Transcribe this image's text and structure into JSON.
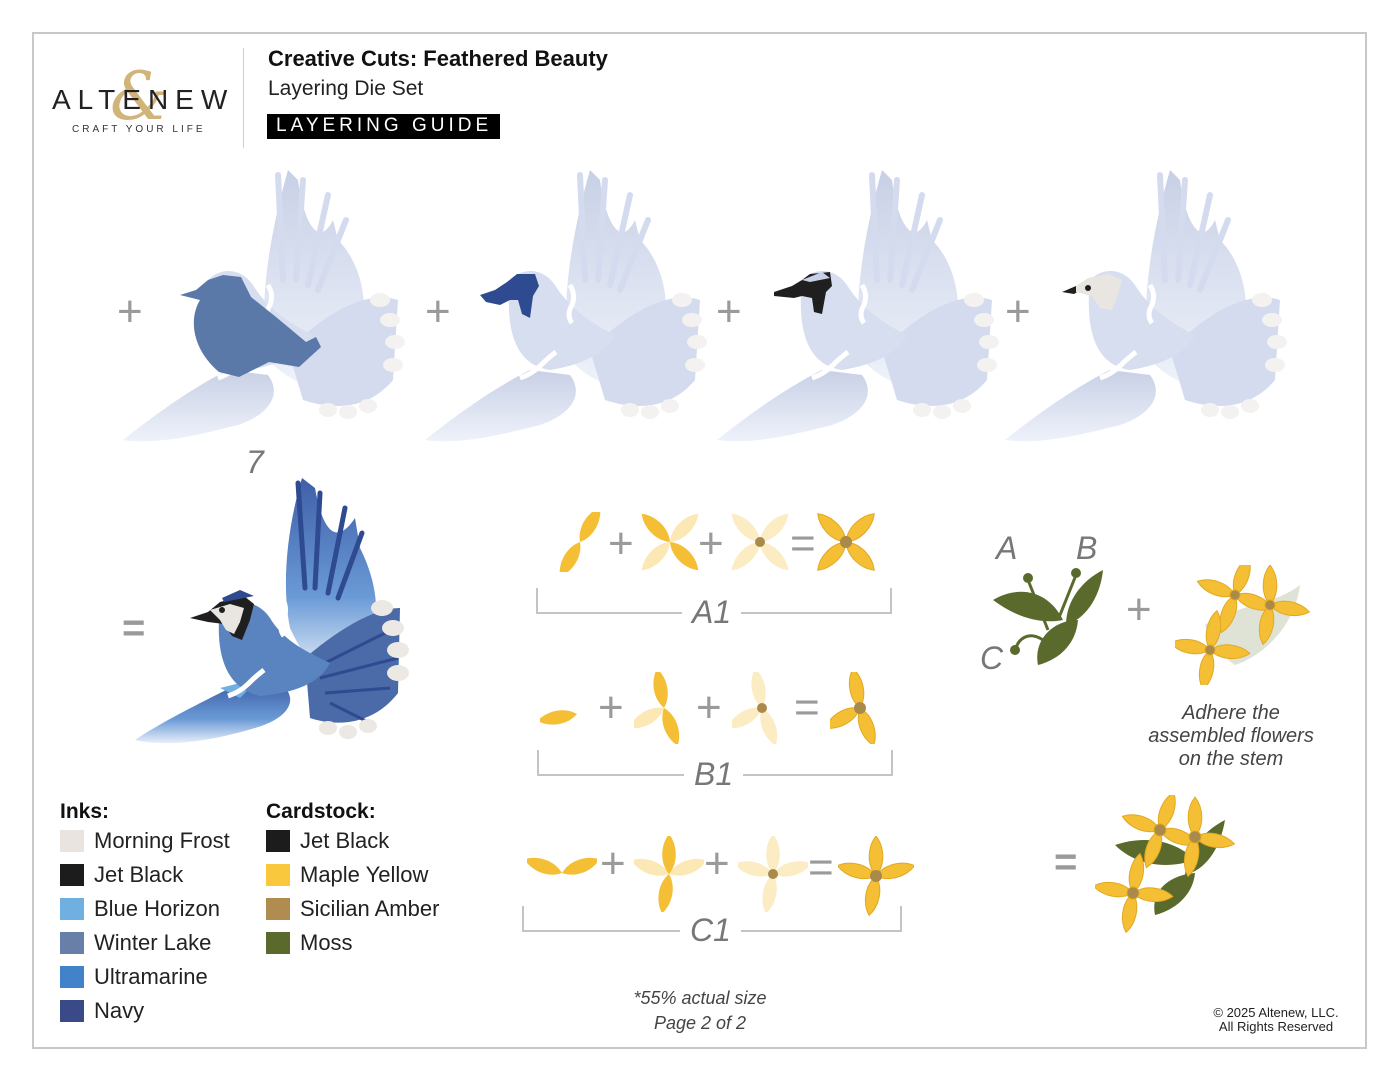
{
  "brand": {
    "name": "ALTENEW",
    "ampersand": "&",
    "tagline": "CRAFT YOUR LIFE"
  },
  "header": {
    "title": "Creative Cuts: Feathered Beauty",
    "subtitle": "Layering Die Set",
    "badge": "LAYERING GUIDE"
  },
  "bird_steps": {
    "operators": [
      "+",
      "+",
      "+",
      "+"
    ],
    "step_number": "7",
    "result_operator": "=",
    "layers": [
      {
        "highlight": "body",
        "color": "#5a78a8"
      },
      {
        "highlight": "crest",
        "color": "#2e4a90"
      },
      {
        "highlight": "face-mask",
        "color": "#1f1f1f"
      },
      {
        "highlight": "face-white",
        "color": "#e9e6e2"
      }
    ]
  },
  "flower_steps": [
    {
      "label": "A1",
      "operators": [
        "+",
        "+",
        "="
      ]
    },
    {
      "label": "B1",
      "operators": [
        "+",
        "+",
        "="
      ]
    },
    {
      "label": "C1",
      "operators": [
        "+",
        "+",
        "="
      ]
    }
  ],
  "stem": {
    "labels": [
      "A",
      "B",
      "C"
    ],
    "plus": "+",
    "equals": "=",
    "instruction_lines": [
      "Adhere the",
      "assembled flowers",
      "on the stem"
    ]
  },
  "legend": {
    "inks_heading": "Inks:",
    "inks": [
      {
        "name": "Morning Frost",
        "color": "#e9e4df"
      },
      {
        "name": "Jet Black",
        "color": "#1c1c1c"
      },
      {
        "name": "Blue Horizon",
        "color": "#6fb0e0"
      },
      {
        "name": "Winter Lake",
        "color": "#6880a8"
      },
      {
        "name": "Ultramarine",
        "color": "#4282c8"
      },
      {
        "name": "Navy",
        "color": "#3a4a88"
      }
    ],
    "cardstock_heading": "Cardstock:",
    "cardstock": [
      {
        "name": "Jet Black",
        "color": "#1c1c1c"
      },
      {
        "name": "Maple Yellow",
        "color": "#f9c83c"
      },
      {
        "name": "Sicilian Amber",
        "color": "#b08c50"
      },
      {
        "name": "Moss",
        "color": "#5a6a2c"
      }
    ]
  },
  "footer": {
    "scale_note": "*55% actual size",
    "page": "Page 2 of 2",
    "copyright": "© 2025 Altenew, LLC.",
    "rights": "All Rights Reserved"
  }
}
